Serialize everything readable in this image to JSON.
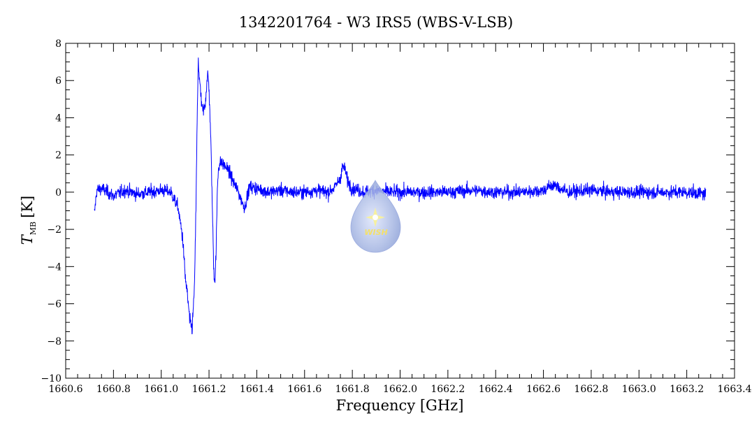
{
  "chart_data": {
    "type": "line",
    "title": "1342201764 - W3 IRS5 (WBS-V-LSB)",
    "xlabel": "Frequency [GHz]",
    "ylabel_main": "T",
    "ylabel_sub": "MB",
    "ylabel_unit": "[K]",
    "xlim": [
      1660.6,
      1663.4
    ],
    "ylim": [
      -10,
      8
    ],
    "grid": false,
    "x_ticks": [
      "1660.6",
      "1660.8",
      "1661.0",
      "1661.2",
      "1661.4",
      "1661.6",
      "1661.8",
      "1662.0",
      "1662.2",
      "1662.4",
      "1662.6",
      "1662.8",
      "1663.0",
      "1663.2",
      "1663.4"
    ],
    "y_ticks": [
      "−10",
      "−8",
      "−6",
      "−4",
      "−2",
      "0",
      "2",
      "4",
      "6",
      "8"
    ],
    "series_color": "#0000ff",
    "series": [
      {
        "x": [
          1660.72,
          1660.73,
          1660.75,
          1660.8,
          1660.85,
          1660.9,
          1660.95,
          1661.0,
          1661.04,
          1661.07,
          1661.09,
          1661.1,
          1661.11,
          1661.12,
          1661.13,
          1661.14,
          1661.145,
          1661.15,
          1661.155,
          1661.16,
          1661.165,
          1661.17,
          1661.175,
          1661.18,
          1661.185,
          1661.19,
          1661.195,
          1661.2,
          1661.205,
          1661.21,
          1661.215,
          1661.22,
          1661.225,
          1661.23,
          1661.235,
          1661.24,
          1661.25,
          1661.26,
          1661.28,
          1661.3,
          1661.32,
          1661.34,
          1661.35,
          1661.37,
          1661.4,
          1661.45,
          1661.5,
          1661.55,
          1661.6,
          1661.65,
          1661.7,
          1661.73,
          1661.75,
          1661.76,
          1661.77,
          1661.78,
          1661.8,
          1661.85,
          1661.9,
          1661.95,
          1662.0,
          1662.1,
          1662.2,
          1662.3,
          1662.4,
          1662.5,
          1662.6,
          1662.64,
          1662.7,
          1662.8,
          1662.9,
          1663.0,
          1663.1,
          1663.2,
          1663.28
        ],
        "y": [
          -1.2,
          0.1,
          0.2,
          -0.2,
          0.1,
          -0.1,
          0.0,
          0.1,
          0.0,
          -0.8,
          -2.5,
          -4.5,
          -5.6,
          -7.0,
          -7.3,
          -4.8,
          -1.0,
          3.5,
          7.0,
          6.2,
          5.2,
          4.6,
          4.3,
          4.5,
          4.9,
          5.8,
          6.3,
          5.6,
          3.8,
          1.5,
          -1.5,
          -4.2,
          -4.8,
          -3.0,
          0.2,
          1.4,
          1.6,
          1.5,
          1.2,
          0.6,
          0.1,
          -0.6,
          -0.8,
          0.3,
          0.2,
          0.0,
          0.1,
          0.0,
          0.0,
          0.1,
          0.0,
          0.3,
          0.8,
          1.4,
          1.2,
          0.6,
          0.2,
          0.0,
          0.1,
          0.0,
          0.0,
          0.0,
          0.0,
          0.1,
          0.0,
          0.0,
          0.1,
          0.4,
          0.0,
          0.1,
          0.0,
          0.0,
          0.0,
          0.0,
          -0.1
        ],
        "noise_rms": 0.25
      }
    ]
  },
  "logo": {
    "text": "WISH",
    "fill": "#a9b9e4",
    "star_color": "#f6f0a0"
  }
}
